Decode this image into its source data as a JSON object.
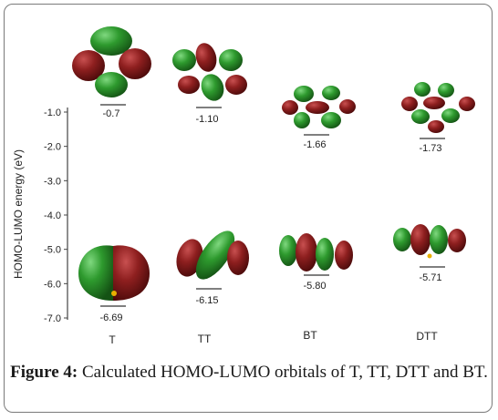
{
  "chart_data": {
    "type": "scatter",
    "ylabel": "HOMO-LUMO energy (eV)",
    "yticks": [
      "-1.0",
      "-2.0",
      "-3.0",
      "-4.0",
      "-5.0",
      "-6.0",
      "-7.0"
    ],
    "ylim": [
      -7.0,
      -0.7
    ],
    "categories": [
      "T",
      "TT",
      "BT",
      "DTT"
    ],
    "lumo": [
      {
        "molecule": "T",
        "energy": -0.7,
        "label": "-0.7"
      },
      {
        "molecule": "TT",
        "energy": -1.1,
        "label": "-1.10"
      },
      {
        "molecule": "BT",
        "energy": -1.66,
        "label": "-1.66"
      },
      {
        "molecule": "DTT",
        "energy": -1.73,
        "label": "-1.73"
      }
    ],
    "homo": [
      {
        "molecule": "T",
        "energy": -6.69,
        "label": "-6.69"
      },
      {
        "molecule": "TT",
        "energy": -6.15,
        "label": "-6.15"
      },
      {
        "molecule": "BT",
        "energy": -5.8,
        "label": "-5.80"
      },
      {
        "molecule": "DTT",
        "energy": -5.71,
        "label": "-5.71"
      }
    ],
    "colors": {
      "lobe_positive": "#2e8b2e",
      "lobe_negative": "#8b1c1c",
      "axis": "#444444"
    }
  },
  "caption": {
    "label": "Figure 4:",
    "text": "Calculated HOMO-LUMO orbitals of T, TT, DTT and BT."
  }
}
